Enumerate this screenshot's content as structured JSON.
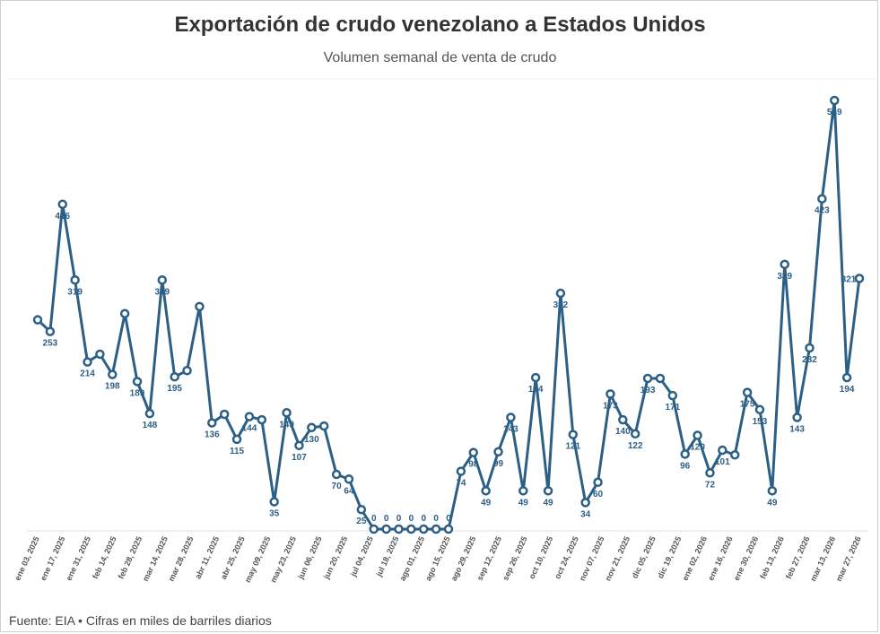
{
  "title": "Exportación de crudo venezolano a Estados Unidos",
  "subtitle": "Volumen semanal de venta de crudo",
  "source": "Fuente: EIA • Cifras en miles de barriles diarios",
  "colors": {
    "line": "#2c5f86",
    "marker_fill": "#ffffff",
    "axis": "#e0e0e0"
  },
  "chart_data": {
    "type": "line",
    "title": "Exportación de crudo venezolano a Estados Unidos",
    "subtitle": "Volumen semanal de venta de crudo",
    "xlabel": "",
    "ylabel": "",
    "ylim": [
      0,
      560
    ],
    "grid": false,
    "tick_labels": [
      "ene 03, 2025",
      "ene 17, 2025",
      "ene 31, 2025",
      "feb 14, 2025",
      "feb 28, 2025",
      "mar 14, 2025",
      "mar 28, 2025",
      "abr 11, 2025",
      "abr 25, 2025",
      "may 09, 2025",
      "may 23, 2025",
      "jun 06, 2025",
      "jun 20, 2025",
      "jul 04, 2025",
      "jul 18, 2025",
      "ago 01, 2025",
      "ago 15, 2025",
      "ago 29, 2025",
      "sep 12, 2025",
      "sep 26, 2025",
      "oct 10, 2025",
      "oct 24, 2025",
      "nov 07, 2025",
      "nov 21, 2025",
      "dic 05, 2025",
      "dic 19, 2025",
      "ene 02, 2026",
      "ene 16, 2026",
      "ene 30, 2026",
      "feb 13, 2026",
      "feb 27, 2026",
      "mar 13, 2026",
      "mar 27, 2026"
    ],
    "values": [
      268,
      253,
      416,
      319,
      214,
      224,
      198,
      276,
      189,
      148,
      319,
      195,
      203,
      285,
      136,
      147,
      115,
      144,
      140,
      35,
      149,
      107,
      130,
      132,
      70,
      64,
      25,
      0,
      0,
      0,
      0,
      0,
      0,
      0,
      74,
      98,
      49,
      99,
      143,
      49,
      194,
      49,
      302,
      121,
      34,
      60,
      173,
      140,
      122,
      193,
      193,
      171,
      96,
      120,
      72,
      101,
      95,
      175,
      153,
      49,
      339,
      143,
      232,
      423,
      549,
      194,
      321
    ],
    "labeled": [
      1,
      2,
      3,
      4,
      6,
      8,
      9,
      10,
      11,
      14,
      16,
      17,
      19,
      20,
      21,
      22,
      24,
      25,
      26,
      27,
      28,
      29,
      30,
      31,
      32,
      33,
      34,
      35,
      36,
      37,
      38,
      39,
      40,
      41,
      42,
      43,
      44,
      45,
      46,
      47,
      48,
      49,
      51,
      52,
      53,
      54,
      55,
      57,
      58,
      59,
      60,
      61,
      62,
      63,
      64,
      65,
      66
    ],
    "series": [
      {
        "values_ref": "values"
      }
    ]
  }
}
